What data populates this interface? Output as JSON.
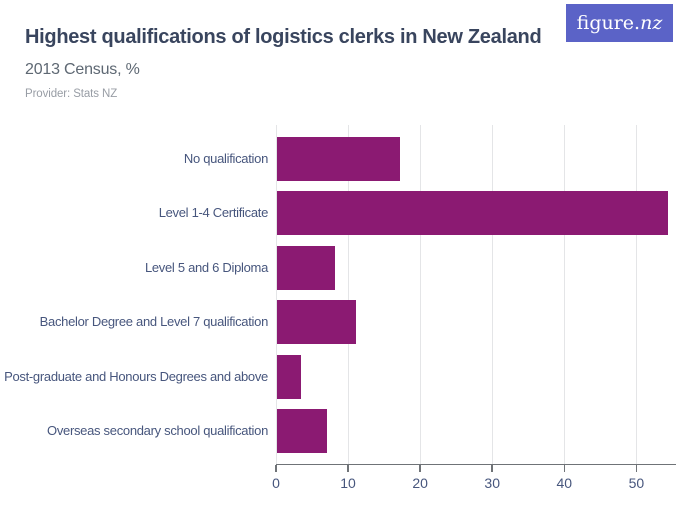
{
  "header": {
    "title": "Highest qualifications of logistics clerks in New Zealand",
    "subtitle": "2013 Census, %",
    "provider": "Provider: Stats NZ",
    "logo": {
      "regular": "figure.",
      "italic": "nz"
    }
  },
  "colors": {
    "bar": "#8b1a72",
    "logo_bg": "#5b63c7",
    "title": "#39455e",
    "subtitle": "#5e6873",
    "provider": "#989da5",
    "axis_label": "#47567d",
    "gridline": "#e4e5e7",
    "axis_line": "#6f7377"
  },
  "chart_data": {
    "type": "bar",
    "orientation": "horizontal",
    "title": "Highest qualifications of logistics clerks in New Zealand",
    "subtitle": "2013 Census, %",
    "provider": "Provider: Stats NZ",
    "unit": "%",
    "categories": [
      "No qualification",
      "Level 1-4 Certificate",
      "Level 5 and 6 Diploma",
      "Bachelor Degree and Level 7 qualification",
      "Post-graduate and Honours Degrees and above",
      "Overseas secondary school qualification"
    ],
    "values": [
      17,
      54.2,
      8,
      11,
      3.3,
      7
    ],
    "xlabel": "",
    "ylabel": "",
    "xticks": [
      0,
      10,
      20,
      30,
      40,
      50
    ],
    "xlim": [
      0,
      55.5
    ],
    "grid": true,
    "legend": false
  }
}
